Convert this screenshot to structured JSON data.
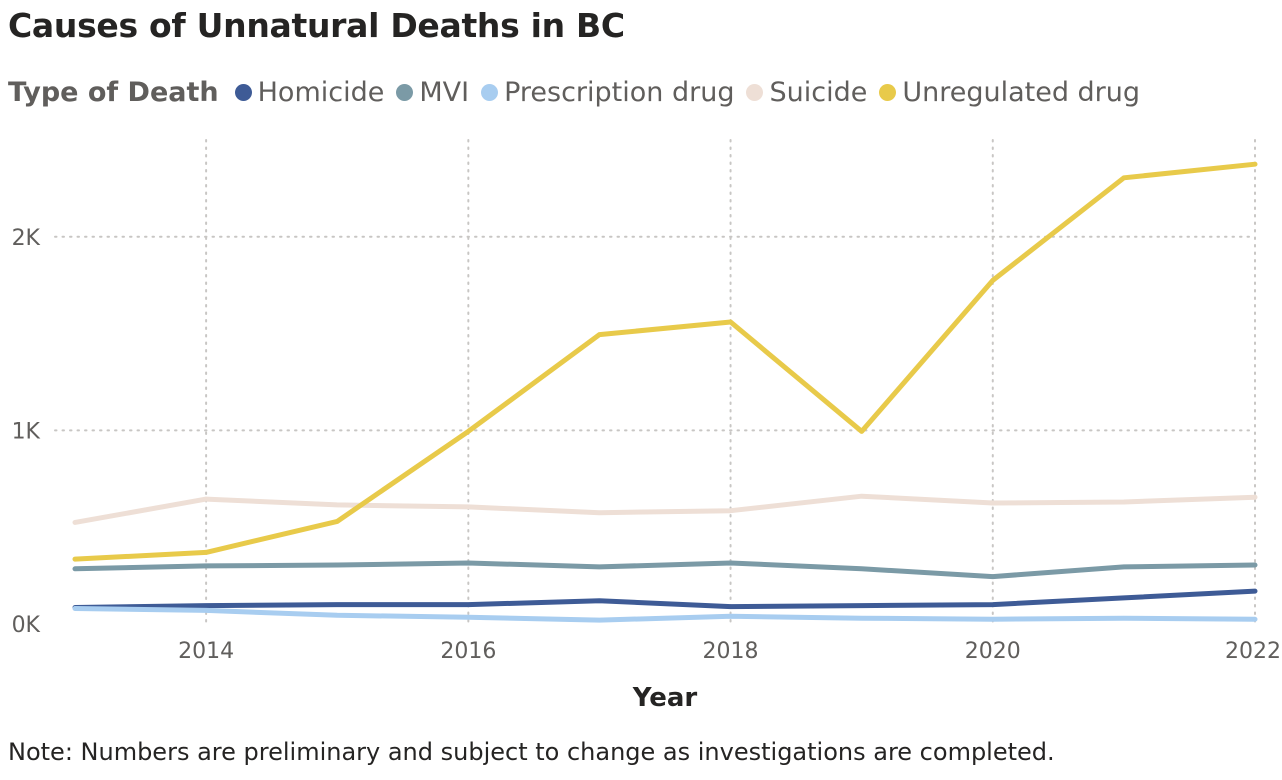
{
  "title": "Causes of Unnatural Deaths in BC",
  "legend": {
    "title": "Type of Death",
    "items": [
      {
        "label": "Homicide",
        "color": "#3e5b96"
      },
      {
        "label": "MVI",
        "color": "#7b9aa6"
      },
      {
        "label": "Prescription drug",
        "color": "#a8cdf0"
      },
      {
        "label": "Suicide",
        "color": "#eedfd6"
      },
      {
        "label": "Unregulated drug",
        "color": "#e8ca4a"
      }
    ]
  },
  "note": "Note: Numbers are preliminary and subject to change as investigations are completed.",
  "chart_data": {
    "type": "line",
    "title": "Causes of Unnatural Deaths in BC",
    "xlabel": "Year",
    "ylabel": "",
    "x": [
      2013,
      2014,
      2015,
      2016,
      2017,
      2018,
      2019,
      2020,
      2021,
      2022
    ],
    "xlim": [
      2013,
      2022
    ],
    "ylim": [
      0,
      2500
    ],
    "x_ticks": [
      2014,
      2016,
      2018,
      2020,
      2022
    ],
    "x_tick_labels": [
      "2014",
      "2016",
      "2018",
      "2020",
      "2022"
    ],
    "y_ticks": [
      0,
      1000,
      2000
    ],
    "y_tick_labels": [
      "0K",
      "1K",
      "2K"
    ],
    "grid": true,
    "series": [
      {
        "name": "Homicide",
        "color": "#3e5b96",
        "values": [
          85,
          95,
          100,
          100,
          120,
          90,
          95,
          100,
          135,
          170
        ]
      },
      {
        "name": "MVI",
        "color": "#7b9aa6",
        "values": [
          285,
          300,
          305,
          315,
          295,
          315,
          285,
          245,
          295,
          305
        ]
      },
      {
        "name": "Prescription drug",
        "color": "#a8cdf0",
        "values": [
          80,
          70,
          45,
          35,
          20,
          40,
          30,
          25,
          30,
          25
        ]
      },
      {
        "name": "Suicide",
        "color": "#eedfd6",
        "values": [
          525,
          645,
          615,
          605,
          575,
          585,
          660,
          625,
          630,
          655
        ]
      },
      {
        "name": "Unregulated drug",
        "color": "#e8ca4a",
        "values": [
          335,
          370,
          530,
          995,
          1495,
          1560,
          995,
          1775,
          2305,
          2375
        ]
      }
    ]
  }
}
